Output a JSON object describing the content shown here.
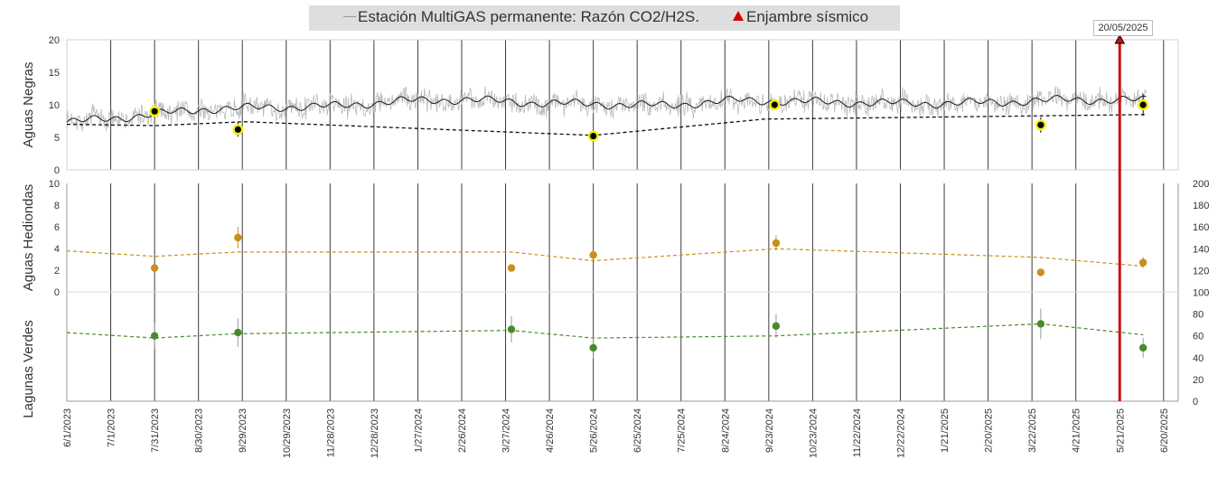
{
  "legend": {
    "series_label": "Estación MultiGAS permanente: Razón CO2/H2S.",
    "event_label": "Enjambre sísmico"
  },
  "event": {
    "date": "20/05/2025",
    "line_x": "2025-05-21"
  },
  "colors": {
    "daily": "#b3b3b3",
    "average": "#1a1a1a",
    "negras_points": "#000000",
    "negras_halo": "#f2f200",
    "hediondas": "#c8901a",
    "verdes": "#4a8a2c",
    "event_line": "#cc1111",
    "grid": "#3c3c3c"
  },
  "chart_data": [
    {
      "type": "line",
      "panel": "Aguas Negras",
      "ylabel": "Aguas Negras",
      "ylim": [
        0,
        20
      ],
      "yticks": [
        "0",
        "5",
        "10",
        "15",
        "20"
      ],
      "xlim": [
        "2023-06-01",
        "2025-06-30"
      ],
      "xticks": [
        "6/1/2023",
        "7/1/2023",
        "7/31/2023",
        "8/30/2023",
        "9/29/2023",
        "10/29/2023",
        "11/28/2023",
        "12/28/2023",
        "1/27/2024",
        "2/26/2024",
        "3/27/2024",
        "4/26/2024",
        "5/26/2024",
        "6/25/2024",
        "7/25/2024",
        "8/24/2024",
        "9/23/2024",
        "10/23/2024",
        "11/22/2024",
        "12/22/2024",
        "1/21/2025",
        "2/20/2025",
        "3/22/2025",
        "4/21/2025",
        "5/21/2025",
        "6/20/2025"
      ],
      "series": [
        {
          "name": "Estación MultiGAS permanente: Razón CO2/H2S.",
          "style": "daily",
          "x": [
            "2023-06-01",
            "2023-07-15",
            "2023-09-01",
            "2023-10-15",
            "2023-12-01",
            "2024-01-15",
            "2024-03-01",
            "2024-04-15",
            "2024-06-01",
            "2024-07-15",
            "2024-09-01",
            "2024-10-15",
            "2024-12-01",
            "2025-01-15",
            "2025-03-01",
            "2025-04-15",
            "2025-06-08"
          ],
          "y": [
            7.3,
            8.2,
            9.3,
            9.6,
            9.8,
            10.6,
            10.8,
            10.3,
            10.1,
            9.9,
            10.7,
            10.5,
            10.3,
            10.2,
            10.4,
            10.8,
            10.7
          ],
          "spread": 1.5
        },
        {
          "style": "moving-average",
          "x": [
            "2023-06-01",
            "2023-07-15",
            "2023-09-01",
            "2023-10-15",
            "2023-12-01",
            "2024-01-15",
            "2024-03-01",
            "2024-04-15",
            "2024-06-01",
            "2024-07-15",
            "2024-09-01",
            "2024-10-15",
            "2024-12-01",
            "2025-01-15",
            "2025-03-01",
            "2025-04-15",
            "2025-06-08"
          ],
          "y": [
            7.3,
            8.2,
            9.3,
            9.6,
            9.8,
            10.6,
            10.8,
            10.3,
            10.1,
            9.9,
            10.7,
            10.5,
            10.3,
            10.2,
            10.4,
            10.8,
            10.7
          ]
        },
        {
          "style": "points",
          "x": [
            "2023-07-31",
            "2023-09-26",
            "2024-05-26",
            "2024-09-27",
            "2025-03-28",
            "2025-06-06"
          ],
          "y": [
            9.0,
            6.2,
            5.2,
            10.0,
            6.9,
            10.0
          ],
          "err": [
            0.6,
            1.1,
            0.6,
            0.5,
            1.2,
            1.7
          ]
        },
        {
          "style": "trend-dashed",
          "x": [
            "2023-06-01",
            "2023-08-01",
            "2023-10-01",
            "2024-05-26",
            "2024-09-20",
            "2025-06-08"
          ],
          "y": [
            7.0,
            6.8,
            7.4,
            5.3,
            7.8,
            8.5
          ]
        }
      ]
    },
    {
      "type": "scatter",
      "panel": "Aguas Hediondas",
      "ylabel": "Aguas Hediondas",
      "ylim": [
        0,
        10
      ],
      "yticks": [
        "0",
        "2",
        "4",
        "6",
        "8",
        "10"
      ],
      "series": [
        {
          "style": "points",
          "x": [
            "2023-07-31",
            "2023-09-26",
            "2024-03-31",
            "2024-05-26",
            "2024-09-28",
            "2025-03-28",
            "2025-06-06"
          ],
          "y": [
            2.2,
            5.0,
            2.2,
            3.4,
            4.5,
            1.8,
            2.7
          ],
          "err": [
            0.3,
            1.0,
            0.3,
            0.4,
            0.7,
            0.3,
            0.5
          ]
        }
      ]
    },
    {
      "type": "scatter",
      "panel": "Lagunas Verdes",
      "ylabel": "Lagunas Verdes",
      "y2lim": [
        0,
        200
      ],
      "y2ticks": [
        "0",
        "20",
        "40",
        "60",
        "80",
        "100",
        "120",
        "140",
        "160",
        "180",
        "200"
      ],
      "series": [
        {
          "style": "trend-dashed-hediondas",
          "x": [
            "2023-06-01",
            "2023-07-31",
            "2023-09-26",
            "2024-03-31",
            "2024-05-26",
            "2024-09-28",
            "2025-03-28",
            "2025-06-06"
          ],
          "y": [
            138,
            133,
            137,
            137,
            129,
            140,
            132,
            124
          ]
        },
        {
          "style": "points",
          "x": [
            "2023-07-31",
            "2023-09-26",
            "2024-03-31",
            "2024-05-26",
            "2024-09-28",
            "2025-03-28",
            "2025-06-06"
          ],
          "y": [
            60,
            63,
            66,
            49,
            69,
            71,
            49
          ],
          "err": [
            12,
            13,
            12,
            10,
            11,
            14,
            9
          ]
        },
        {
          "style": "trend-dashed-verdes",
          "x": [
            "2023-06-01",
            "2023-07-31",
            "2023-09-26",
            "2024-03-31",
            "2024-05-26",
            "2024-09-28",
            "2025-03-28",
            "2025-06-06"
          ],
          "y": [
            63,
            58,
            62,
            65,
            58,
            60,
            71,
            61
          ]
        }
      ]
    }
  ]
}
